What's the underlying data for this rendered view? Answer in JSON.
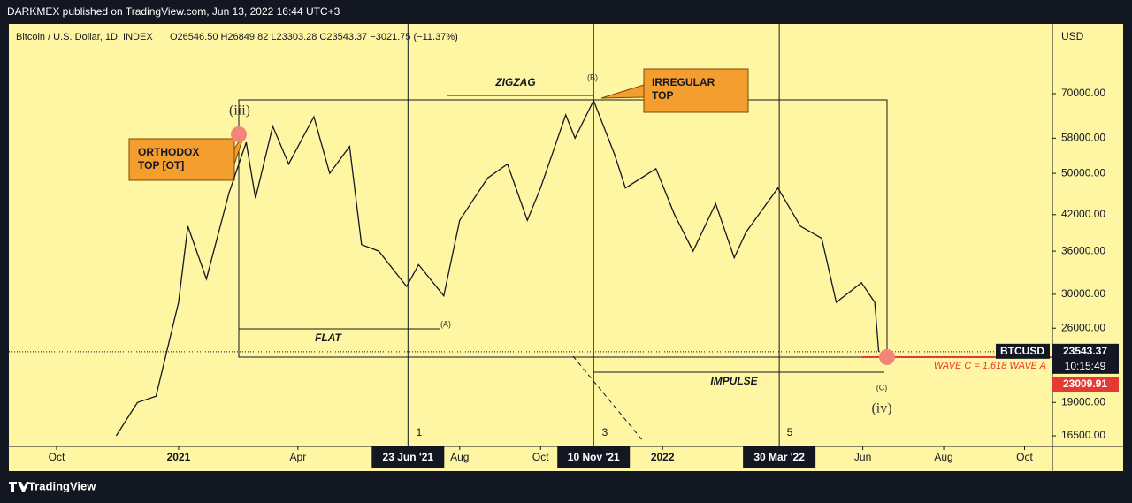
{
  "header": {
    "publisher": "DARKMEX published on TradingView.com, Jun 13, 2022 16:44 UTC+3",
    "brand": "TradingView"
  },
  "chart_data": {
    "type": "line",
    "symbol": "Bitcoin / U.S. Dollar, 1D, INDEX",
    "ohlc": "O26546.50 H26849.82 L23303.28 C23543.37 −3021.75 (−11.37%)",
    "currency": "USD",
    "series": [
      {
        "name": "BTCUSD",
        "color": "#131722",
        "x": [
          "2020-11-15",
          "2020-12-01",
          "2020-12-15",
          "2021-01-01",
          "2021-01-08",
          "2021-01-22",
          "2021-02-08",
          "2021-02-21",
          "2021-02-28",
          "2021-03-13",
          "2021-03-25",
          "2021-04-13",
          "2021-04-25",
          "2021-05-10",
          "2021-05-19",
          "2021-06-01",
          "2021-06-22",
          "2021-07-01",
          "2021-07-20",
          "2021-08-01",
          "2021-08-22",
          "2021-09-06",
          "2021-09-21",
          "2021-10-01",
          "2021-10-20",
          "2021-10-27",
          "2021-11-10",
          "2021-11-26",
          "2021-12-04",
          "2021-12-27",
          "2022-01-10",
          "2022-01-24",
          "2022-02-10",
          "2022-02-24",
          "2022-03-05",
          "2022-03-29",
          "2022-04-15",
          "2022-05-01",
          "2022-05-12",
          "2022-05-31",
          "2022-06-10",
          "2022-06-13"
        ],
        "values": [
          16500,
          19000,
          19500,
          29000,
          40000,
          32000,
          46000,
          57000,
          45000,
          61000,
          52000,
          63500,
          50000,
          56000,
          37000,
          36000,
          31000,
          34000,
          29800,
          41000,
          49000,
          52000,
          41000,
          47000,
          64000,
          58000,
          68000,
          54000,
          47000,
          51000,
          42000,
          36000,
          44000,
          35000,
          39000,
          47000,
          40000,
          38000,
          29000,
          31500,
          29000,
          23543.37
        ]
      }
    ],
    "log_scale": true,
    "ylim": [
      15780,
      94000
    ],
    "yticks": [
      {
        "value": 70000,
        "label": "70000.00"
      },
      {
        "value": 58000,
        "label": "58000.00"
      },
      {
        "value": 50000,
        "label": "50000.00"
      },
      {
        "value": 42000,
        "label": "42000.00"
      },
      {
        "value": 36000,
        "label": "36000.00"
      },
      {
        "value": 30000,
        "label": "30000.00"
      },
      {
        "value": 26000,
        "label": "26000.00"
      },
      {
        "value": 19000,
        "label": "19000.00"
      },
      {
        "value": 16500,
        "label": "16500.00"
      }
    ],
    "xlim": [
      "2020-08-26",
      "2022-10-22"
    ],
    "xticks": [
      {
        "value": "2020-10-01",
        "label": "Oct"
      },
      {
        "value": "2021-01-01",
        "label": "2021"
      },
      {
        "value": "2021-04-01",
        "label": "Apr"
      },
      {
        "value": "2021-08-01",
        "label": "Aug"
      },
      {
        "value": "2021-10-01",
        "label": "Oct"
      },
      {
        "value": "2022-01-01",
        "label": "2022"
      },
      {
        "value": "2022-06-01",
        "label": "Jun"
      },
      {
        "value": "2022-08-01",
        "label": "Aug"
      },
      {
        "value": "2022-10-01",
        "label": "Oct"
      }
    ],
    "markers": [
      {
        "value": "2021-06-23",
        "label": "23 Jun '21"
      },
      {
        "value": "2021-11-10",
        "label": "10 Nov '21"
      },
      {
        "value": "2022-03-30",
        "label": "30 Mar '22"
      }
    ],
    "last_price": 23543.37,
    "countdown": "10:15:49",
    "target_price": 23009.91,
    "annotations": [
      "ZIGZAG",
      "FLAT",
      "IMPULSE",
      "(iii)",
      "(iv)",
      "(A)",
      "(B)",
      "(C)",
      "1",
      "3",
      "5",
      "WAVE C = 1.618 WAVE A"
    ],
    "callouts": [
      [
        "ORTHODOX",
        "TOP [OT]"
      ],
      [
        "IRREGULAR",
        "TOP"
      ]
    ]
  }
}
